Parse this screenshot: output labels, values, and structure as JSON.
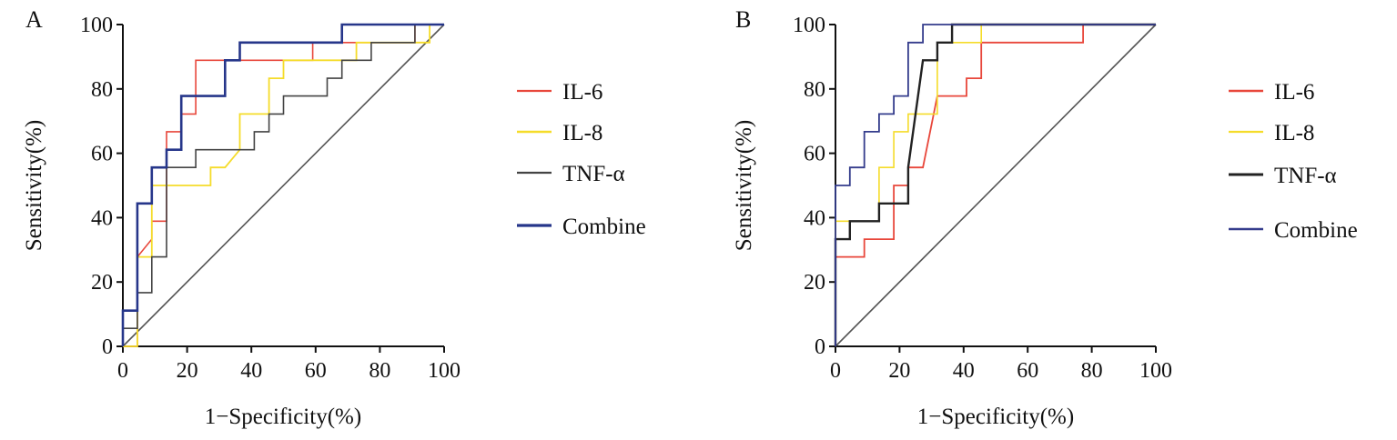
{
  "chart_data": [
    {
      "panel_label": "A",
      "type": "line",
      "xlabel": "1−Specificity(%)",
      "ylabel": "Sensitivity(%)",
      "xlim": [
        0,
        100
      ],
      "ylim": [
        0,
        100
      ],
      "x_ticks": [
        0,
        20,
        40,
        60,
        80,
        100
      ],
      "y_ticks": [
        0,
        20,
        40,
        60,
        80,
        100
      ],
      "grid": false,
      "legend_position": "right",
      "reference_line": [
        [
          0,
          0
        ],
        [
          100,
          100
        ]
      ],
      "reference_color": "#555555",
      "series": [
        {
          "name": "IL-6",
          "color": "#e8473b",
          "points": [
            [
              0,
              0
            ],
            [
              4.5,
              0
            ],
            [
              4.5,
              27.8
            ],
            [
              9,
              33.3
            ],
            [
              9,
              38.9
            ],
            [
              13.6,
              38.9
            ],
            [
              13.6,
              66.7
            ],
            [
              18.2,
              66.7
            ],
            [
              18.2,
              72.2
            ],
            [
              22.7,
              72.2
            ],
            [
              22.7,
              88.9
            ],
            [
              59.1,
              88.9
            ],
            [
              59.1,
              94.4
            ],
            [
              90.9,
              94.4
            ],
            [
              90.9,
              100
            ],
            [
              100,
              100
            ]
          ]
        },
        {
          "name": "IL-8",
          "color": "#f5dc2a",
          "points": [
            [
              0,
              0
            ],
            [
              4.5,
              0
            ],
            [
              4.5,
              27.8
            ],
            [
              9,
              27.8
            ],
            [
              9,
              50
            ],
            [
              27.3,
              50
            ],
            [
              27.3,
              55.6
            ],
            [
              31.8,
              55.6
            ],
            [
              36.4,
              61.1
            ],
            [
              36.4,
              72.2
            ],
            [
              45.5,
              72.2
            ],
            [
              45.5,
              83.3
            ],
            [
              50,
              83.3
            ],
            [
              50,
              88.9
            ],
            [
              72.7,
              88.9
            ],
            [
              72.7,
              94.4
            ],
            [
              95.5,
              94.4
            ],
            [
              95.5,
              100
            ],
            [
              100,
              100
            ]
          ]
        },
        {
          "name": "TNF-α",
          "color": "#444444",
          "points": [
            [
              0,
              0
            ],
            [
              0,
              5.6
            ],
            [
              4.5,
              5.6
            ],
            [
              4.5,
              16.7
            ],
            [
              9,
              16.7
            ],
            [
              9,
              27.8
            ],
            [
              13.6,
              27.8
            ],
            [
              13.6,
              55.6
            ],
            [
              22.7,
              55.6
            ],
            [
              22.7,
              61.1
            ],
            [
              40.9,
              61.1
            ],
            [
              40.9,
              66.7
            ],
            [
              45.5,
              66.7
            ],
            [
              45.5,
              72.2
            ],
            [
              50,
              72.2
            ],
            [
              50,
              77.8
            ],
            [
              63.6,
              77.8
            ],
            [
              63.6,
              83.3
            ],
            [
              68.2,
              83.3
            ],
            [
              68.2,
              88.9
            ],
            [
              77.3,
              88.9
            ],
            [
              77.3,
              94.4
            ],
            [
              90.9,
              94.4
            ],
            [
              90.9,
              100
            ],
            [
              100,
              100
            ]
          ]
        },
        {
          "name": "Combine",
          "color": "#26368a",
          "points": [
            [
              0,
              0
            ],
            [
              0,
              11.1
            ],
            [
              4.5,
              11.1
            ],
            [
              4.5,
              44.4
            ],
            [
              9,
              44.4
            ],
            [
              9,
              55.6
            ],
            [
              13.6,
              55.6
            ],
            [
              13.6,
              61.1
            ],
            [
              18.2,
              61.1
            ],
            [
              18.2,
              77.8
            ],
            [
              31.8,
              77.8
            ],
            [
              31.8,
              88.9
            ],
            [
              36.4,
              88.9
            ],
            [
              36.4,
              94.4
            ],
            [
              68.2,
              94.4
            ],
            [
              68.2,
              100
            ],
            [
              100,
              100
            ]
          ]
        }
      ]
    },
    {
      "panel_label": "B",
      "type": "line",
      "xlabel": "1−Specificity(%)",
      "ylabel": "Sensitivity(%)",
      "xlim": [
        0,
        100
      ],
      "ylim": [
        0,
        100
      ],
      "x_ticks": [
        0,
        20,
        40,
        60,
        80,
        100
      ],
      "y_ticks": [
        0,
        20,
        40,
        60,
        80,
        100
      ],
      "grid": false,
      "legend_position": "right",
      "reference_line": [
        [
          0,
          0
        ],
        [
          100,
          100
        ]
      ],
      "reference_color": "#555555",
      "series": [
        {
          "name": "IL-6",
          "color": "#e8473b",
          "points": [
            [
              0,
              0
            ],
            [
              0,
              27.8
            ],
            [
              9,
              27.8
            ],
            [
              9,
              33.3
            ],
            [
              18.2,
              33.3
            ],
            [
              18.2,
              50
            ],
            [
              22.7,
              50
            ],
            [
              22.7,
              55.6
            ],
            [
              27.3,
              55.6
            ],
            [
              31.8,
              77.8
            ],
            [
              40.9,
              77.8
            ],
            [
              40.9,
              83.3
            ],
            [
              45.5,
              83.3
            ],
            [
              45.5,
              94.4
            ],
            [
              77.3,
              94.4
            ],
            [
              77.3,
              100
            ],
            [
              100,
              100
            ]
          ]
        },
        {
          "name": "IL-8",
          "color": "#f5dc2a",
          "points": [
            [
              0,
              0
            ],
            [
              0,
              38.9
            ],
            [
              13.6,
              38.9
            ],
            [
              13.6,
              55.6
            ],
            [
              18.2,
              55.6
            ],
            [
              18.2,
              66.7
            ],
            [
              22.7,
              66.7
            ],
            [
              22.7,
              72.2
            ],
            [
              31.8,
              72.2
            ],
            [
              31.8,
              94.4
            ],
            [
              45.5,
              94.4
            ],
            [
              45.5,
              100
            ],
            [
              100,
              100
            ]
          ]
        },
        {
          "name": "TNF-α",
          "color": "#222222",
          "points": [
            [
              0,
              0
            ],
            [
              0,
              33.3
            ],
            [
              4.5,
              33.3
            ],
            [
              4.5,
              38.9
            ],
            [
              13.6,
              38.9
            ],
            [
              13.6,
              44.4
            ],
            [
              22.7,
              44.4
            ],
            [
              22.7,
              55.6
            ],
            [
              27.3,
              88.9
            ],
            [
              31.8,
              88.9
            ],
            [
              31.8,
              94.4
            ],
            [
              36.4,
              94.4
            ],
            [
              36.4,
              100
            ],
            [
              100,
              100
            ]
          ]
        },
        {
          "name": "Combine",
          "color": "#343c8c",
          "points": [
            [
              0,
              0
            ],
            [
              0,
              50
            ],
            [
              4.5,
              50
            ],
            [
              4.5,
              55.6
            ],
            [
              9,
              55.6
            ],
            [
              9,
              66.7
            ],
            [
              13.6,
              66.7
            ],
            [
              13.6,
              72.2
            ],
            [
              18.2,
              72.2
            ],
            [
              18.2,
              77.8
            ],
            [
              22.7,
              77.8
            ],
            [
              22.7,
              94.4
            ],
            [
              27.3,
              94.4
            ],
            [
              27.3,
              100
            ],
            [
              100,
              100
            ]
          ]
        }
      ]
    }
  ]
}
